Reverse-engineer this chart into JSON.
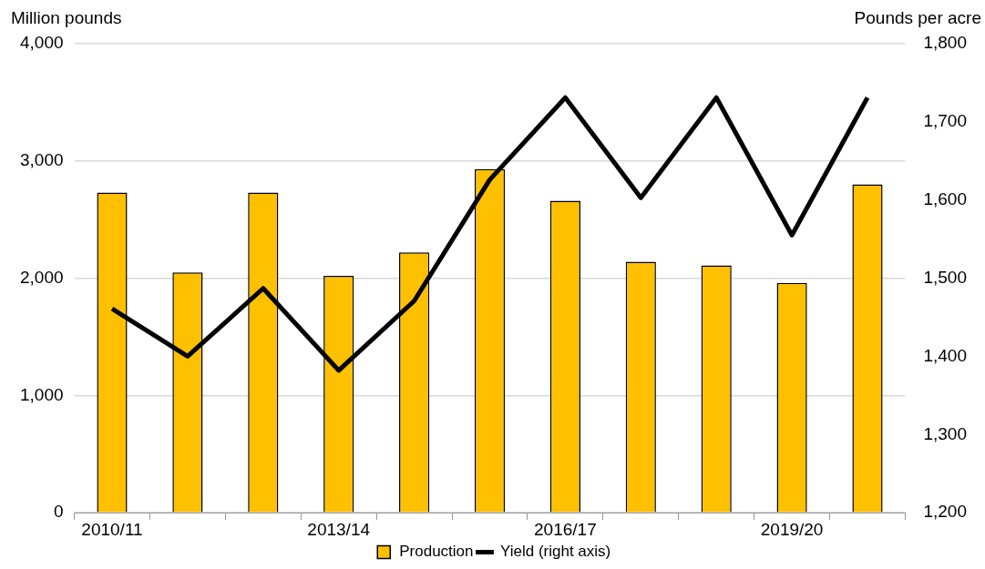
{
  "chart_data": {
    "type": "bar",
    "ylabel": "Million pounds",
    "y2label": "Pounds per acre",
    "categories": [
      "2010/11",
      null,
      null,
      "2013/14",
      null,
      null,
      "2016/17",
      null,
      null,
      "2019/20",
      null
    ],
    "series": [
      {
        "name": "Production",
        "color": "#ffc000",
        "values": [
          2730,
          2050,
          2730,
          2020,
          2220,
          2930,
          2660,
          2140,
          2110,
          1960,
          2800
        ]
      },
      {
        "name": "Yield (right axis)",
        "type": "line",
        "axis": "y2",
        "color": "#000000",
        "values": [
          1461,
          1400,
          1487,
          1382,
          1471,
          1626,
          1731,
          1603,
          1731,
          1555,
          1731
        ]
      }
    ],
    "ylim": [
      0,
      4000
    ],
    "yticks": [
      0,
      {
        "value": 1000,
        "label": "1,000"
      },
      {
        "value": 2000,
        "label": "2,000"
      },
      {
        "value": 3000,
        "label": "3,000"
      },
      {
        "value": 4000,
        "label": "4,000"
      }
    ],
    "y2lim": [
      1200,
      1800
    ],
    "y2ticks": [
      {
        "value": 1200,
        "label": "1,200"
      },
      {
        "value": 1300,
        "label": "1,300"
      },
      {
        "value": 1400,
        "label": "1,400"
      },
      {
        "value": 1500,
        "label": "1,500"
      },
      {
        "value": 1600,
        "label": "1,600"
      },
      {
        "value": 1700,
        "label": "1,700"
      },
      {
        "value": 1800,
        "label": "1,800"
      }
    ],
    "grid": "y",
    "legend": "bottom",
    "marker": "none"
  }
}
